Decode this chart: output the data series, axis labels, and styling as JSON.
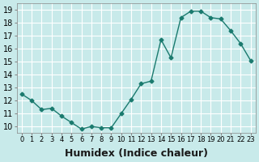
{
  "x": [
    0,
    1,
    2,
    3,
    4,
    5,
    6,
    7,
    8,
    9,
    10,
    11,
    12,
    13,
    14,
    15,
    16,
    17,
    18,
    19,
    20,
    21,
    22,
    23
  ],
  "y": [
    12.5,
    12.0,
    11.3,
    11.4,
    10.8,
    10.3,
    9.8,
    10.0,
    9.9,
    9.9,
    11.0,
    12.1,
    13.3,
    13.5,
    16.7,
    15.3,
    18.4,
    18.9,
    18.9,
    18.4,
    18.3,
    17.4,
    16.4,
    15.1
  ],
  "line_color": "#1a7a6e",
  "marker_color": "#1a7a6e",
  "bg_color": "#c8eaea",
  "grid_color": "#ffffff",
  "xlabel": "Humidex (Indice chaleur)",
  "xlabel_fontsize": 9,
  "ylabel_ticks": [
    10,
    11,
    12,
    13,
    14,
    15,
    16,
    17,
    18,
    19
  ],
  "xlim": [
    -0.5,
    23.5
  ],
  "ylim": [
    9.5,
    19.5
  ],
  "xtick_labels": [
    "0",
    "1",
    "2",
    "3",
    "4",
    "5",
    "6",
    "7",
    "8",
    "9",
    "10",
    "11",
    "12",
    "13",
    "14",
    "15",
    "16",
    "17",
    "18",
    "19",
    "20",
    "21",
    "22",
    "23"
  ]
}
